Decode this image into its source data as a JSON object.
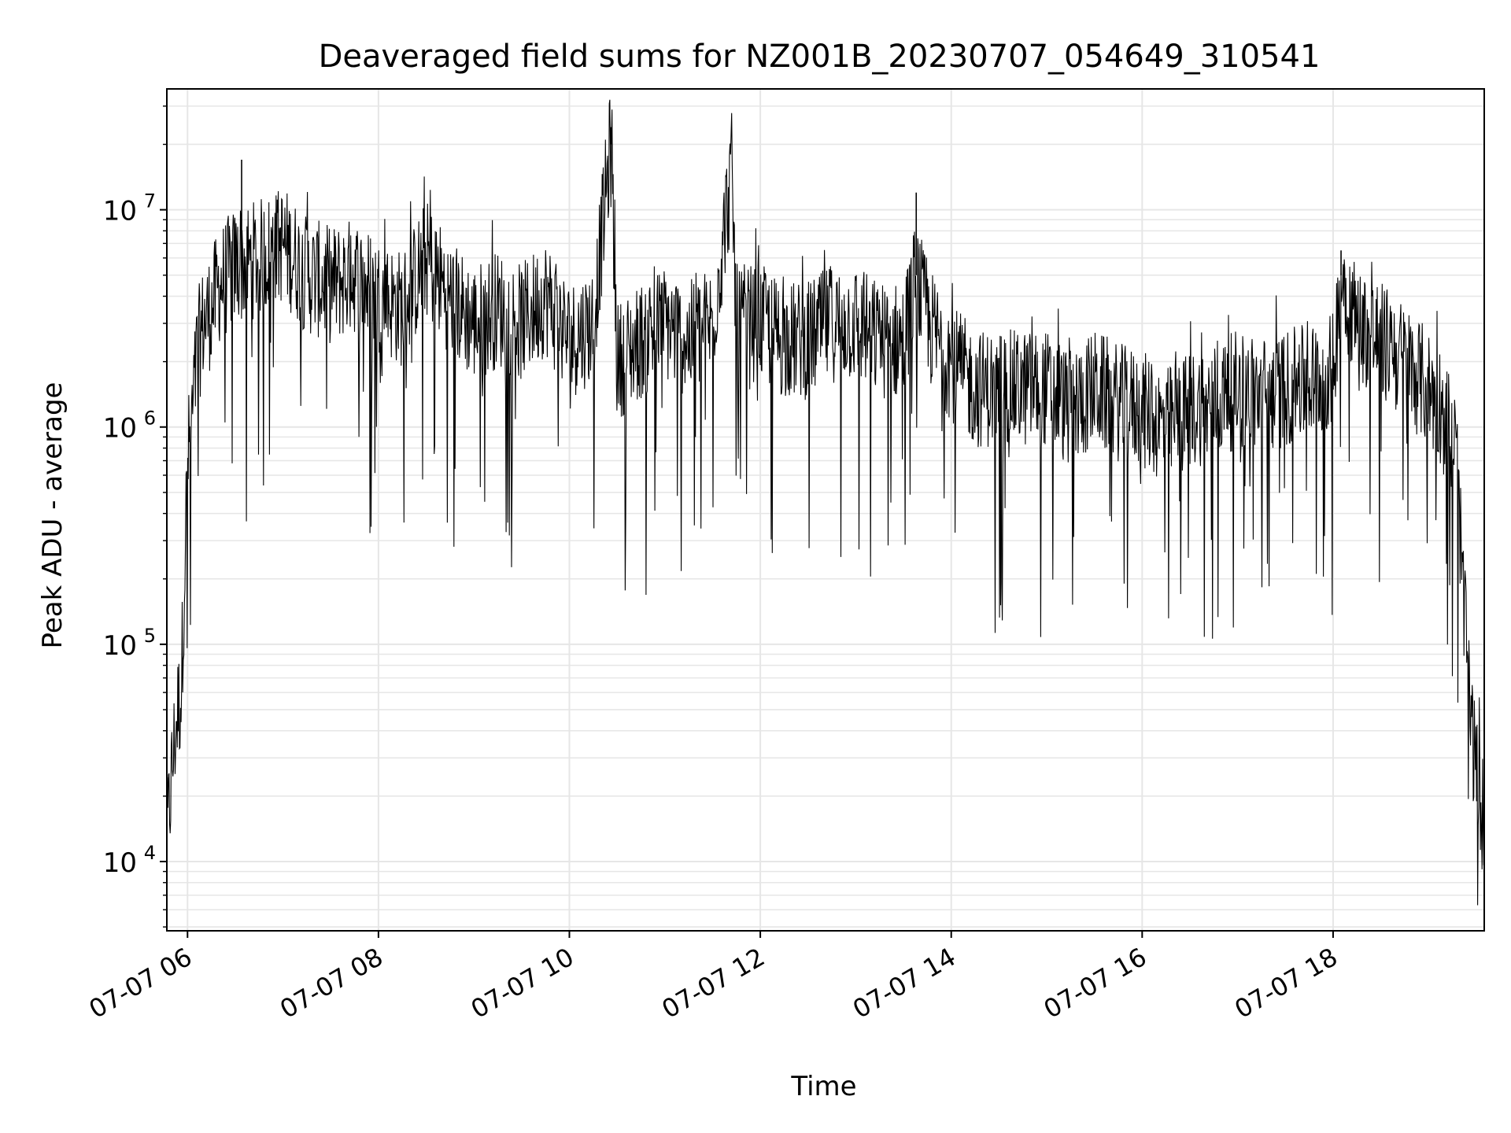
{
  "chart_data": {
    "type": "line",
    "title": "Deaveraged field sums for NZ001B_20230707_054649_310541",
    "xlabel": "Time",
    "ylabel": "Peak ADU - average",
    "y_scale": "log",
    "ylim": [
      4800,
      36000000
    ],
    "xlim": [
      "2023-07-07 05:47",
      "2023-07-07 19:35"
    ],
    "grid": true,
    "legend": "none",
    "line_color": "#000000",
    "grid_color": "#e6e6e6",
    "x_ticks": [
      {
        "time": "2023-07-07 06:00",
        "label": "07-07 06"
      },
      {
        "time": "2023-07-07 08:00",
        "label": "07-07 08"
      },
      {
        "time": "2023-07-07 10:00",
        "label": "07-07 10"
      },
      {
        "time": "2023-07-07 12:00",
        "label": "07-07 12"
      },
      {
        "time": "2023-07-07 14:00",
        "label": "07-07 14"
      },
      {
        "time": "2023-07-07 16:00",
        "label": "07-07 16"
      },
      {
        "time": "2023-07-07 18:00",
        "label": "07-07 18"
      }
    ],
    "y_ticks": [
      {
        "value": 10000,
        "base": "10",
        "exp": "4"
      },
      {
        "value": 100000,
        "base": "10",
        "exp": "5"
      },
      {
        "value": 1000000,
        "base": "10",
        "exp": "6"
      },
      {
        "value": 10000000,
        "base": "10",
        "exp": "7"
      }
    ],
    "series": [
      {
        "x": [
          "2023-07-07 05:47",
          "2023-07-07 05:50",
          "2023-07-07 05:53",
          "2023-07-07 05:56",
          "2023-07-07 05:58",
          "2023-07-07 06:00",
          "2023-07-07 06:03",
          "2023-07-07 06:06",
          "2023-07-07 06:10",
          "2023-07-07 06:15",
          "2023-07-07 06:20",
          "2023-07-07 06:30",
          "2023-07-07 06:45",
          "2023-07-07 07:00",
          "2023-07-07 07:15",
          "2023-07-07 07:30",
          "2023-07-07 07:45",
          "2023-07-07 08:00",
          "2023-07-07 08:15",
          "2023-07-07 08:30",
          "2023-07-07 08:45",
          "2023-07-07 09:00",
          "2023-07-07 09:15",
          "2023-07-07 09:30",
          "2023-07-07 09:45",
          "2023-07-07 10:00",
          "2023-07-07 10:15",
          "2023-07-07 10:26",
          "2023-07-07 10:30",
          "2023-07-07 10:45",
          "2023-07-07 11:00",
          "2023-07-07 11:15",
          "2023-07-07 11:30",
          "2023-07-07 11:42",
          "2023-07-07 11:45",
          "2023-07-07 12:00",
          "2023-07-07 12:15",
          "2023-07-07 12:30",
          "2023-07-07 12:45",
          "2023-07-07 13:00",
          "2023-07-07 13:15",
          "2023-07-07 13:30",
          "2023-07-07 13:38",
          "2023-07-07 13:45",
          "2023-07-07 14:00",
          "2023-07-07 14:15",
          "2023-07-07 14:30",
          "2023-07-07 14:45",
          "2023-07-07 15:00",
          "2023-07-07 15:15",
          "2023-07-07 15:30",
          "2023-07-07 15:45",
          "2023-07-07 16:00",
          "2023-07-07 16:15",
          "2023-07-07 16:30",
          "2023-07-07 16:45",
          "2023-07-07 17:00",
          "2023-07-07 17:15",
          "2023-07-07 17:30",
          "2023-07-07 17:45",
          "2023-07-07 18:00",
          "2023-07-07 18:05",
          "2023-07-07 18:15",
          "2023-07-07 18:30",
          "2023-07-07 18:45",
          "2023-07-07 19:00",
          "2023-07-07 19:10",
          "2023-07-07 19:18",
          "2023-07-07 19:22",
          "2023-07-07 19:26",
          "2023-07-07 19:30",
          "2023-07-07 19:35"
        ],
        "y": [
          12000,
          25000,
          45000,
          60000,
          200000,
          700000,
          1100000,
          2200000,
          3000000,
          3500000,
          4500000,
          5500000,
          6000000,
          7000000,
          5000000,
          4500000,
          5000000,
          4000000,
          3500000,
          6000000,
          4000000,
          3000000,
          3500000,
          3000000,
          4000000,
          2500000,
          3000000,
          20000000,
          2000000,
          2500000,
          3000000,
          2500000,
          3000000,
          15000000,
          3000000,
          3000000,
          2500000,
          2500000,
          3000000,
          3000000,
          2500000,
          2500000,
          5000000,
          3000000,
          2000000,
          1500000,
          1500000,
          1500000,
          1500000,
          1200000,
          1500000,
          1300000,
          1200000,
          1000000,
          1200000,
          1300000,
          1500000,
          1400000,
          1500000,
          1600000,
          1800000,
          5000000,
          3000000,
          2500000,
          2000000,
          1500000,
          1200000,
          700000,
          150000,
          50000,
          25000,
          15000
        ]
      }
    ],
    "annotations": [
      {
        "x": "2023-07-07 06:34",
        "y": 17000000
      },
      {
        "x": "2023-07-07 10:26",
        "y": 24000000
      },
      {
        "x": "2023-07-07 11:42",
        "y": 15000000
      },
      {
        "x": "2023-07-07 13:38",
        "y": 12000000
      },
      {
        "x": "2023-07-07 18:05",
        "y": 6500000
      }
    ]
  }
}
